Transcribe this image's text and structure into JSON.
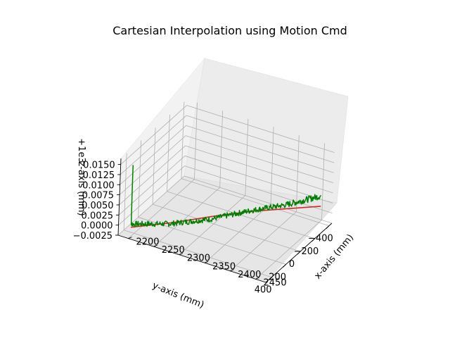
{
  "chart_data": {
    "type": "line",
    "projection": "3d",
    "title": "Cartesian Interpolation using Motion Cmd",
    "xlabel": "x-axis (mm)",
    "ylabel": "y-axis (mm)",
    "zlabel": "z-axis (mm)",
    "z_offset_text": "+1e3",
    "xlim": [
      2180,
      2470
    ],
    "ylim": [
      -440,
      480
    ],
    "zlim": [
      -0.0025,
      0.0165
    ],
    "x_ticks": [
      "2200",
      "2250",
      "2300",
      "2350",
      "2400",
      "2450"
    ],
    "y_ticks": [
      "400",
      "200",
      "0",
      "−200",
      "−400"
    ],
    "z_ticks": [
      "−0.0025",
      "0.0000",
      "0.0025",
      "0.0050",
      "0.0075",
      "0.0100",
      "0.0125",
      "0.0150"
    ],
    "grid": true,
    "series": [
      {
        "color": "#d62728",
        "kind": "commanded-path",
        "points": [
          [
            2200,
            450,
            -0.0002
          ],
          [
            2250,
            250,
            -0.0003
          ],
          [
            2300,
            30,
            -0.0002
          ],
          [
            2350,
            -150,
            0.0002
          ],
          [
            2400,
            -300,
            0.0005
          ],
          [
            2450,
            -420,
            0.0012
          ]
        ]
      },
      {
        "color": "#008000",
        "kind": "measured-path",
        "segments": [
          {
            "from": [
              2200,
              450,
              0.0152
            ],
            "to": [
              2200,
              445,
              0.0005
            ],
            "noise": 0.00015
          },
          {
            "from": [
              2200,
              445,
              0.0005
            ],
            "to": [
              2250,
              250,
              -0.0005
            ],
            "noise": 0.0007
          },
          {
            "from": [
              2250,
              250,
              -0.0005
            ],
            "to": [
              2300,
              30,
              -0.0008
            ],
            "noise": 0.0007
          },
          {
            "from": [
              2300,
              30,
              -0.0008
            ],
            "to": [
              2350,
              -150,
              0.0004
            ],
            "noise": 0.0007
          },
          {
            "from": [
              2350,
              -150,
              0.0004
            ],
            "to": [
              2400,
              -300,
              0.0015
            ],
            "noise": 0.0007
          },
          {
            "from": [
              2400,
              -300,
              0.0015
            ],
            "to": [
              2450,
              -420,
              0.0038
            ],
            "noise": 0.0008
          }
        ]
      }
    ]
  }
}
